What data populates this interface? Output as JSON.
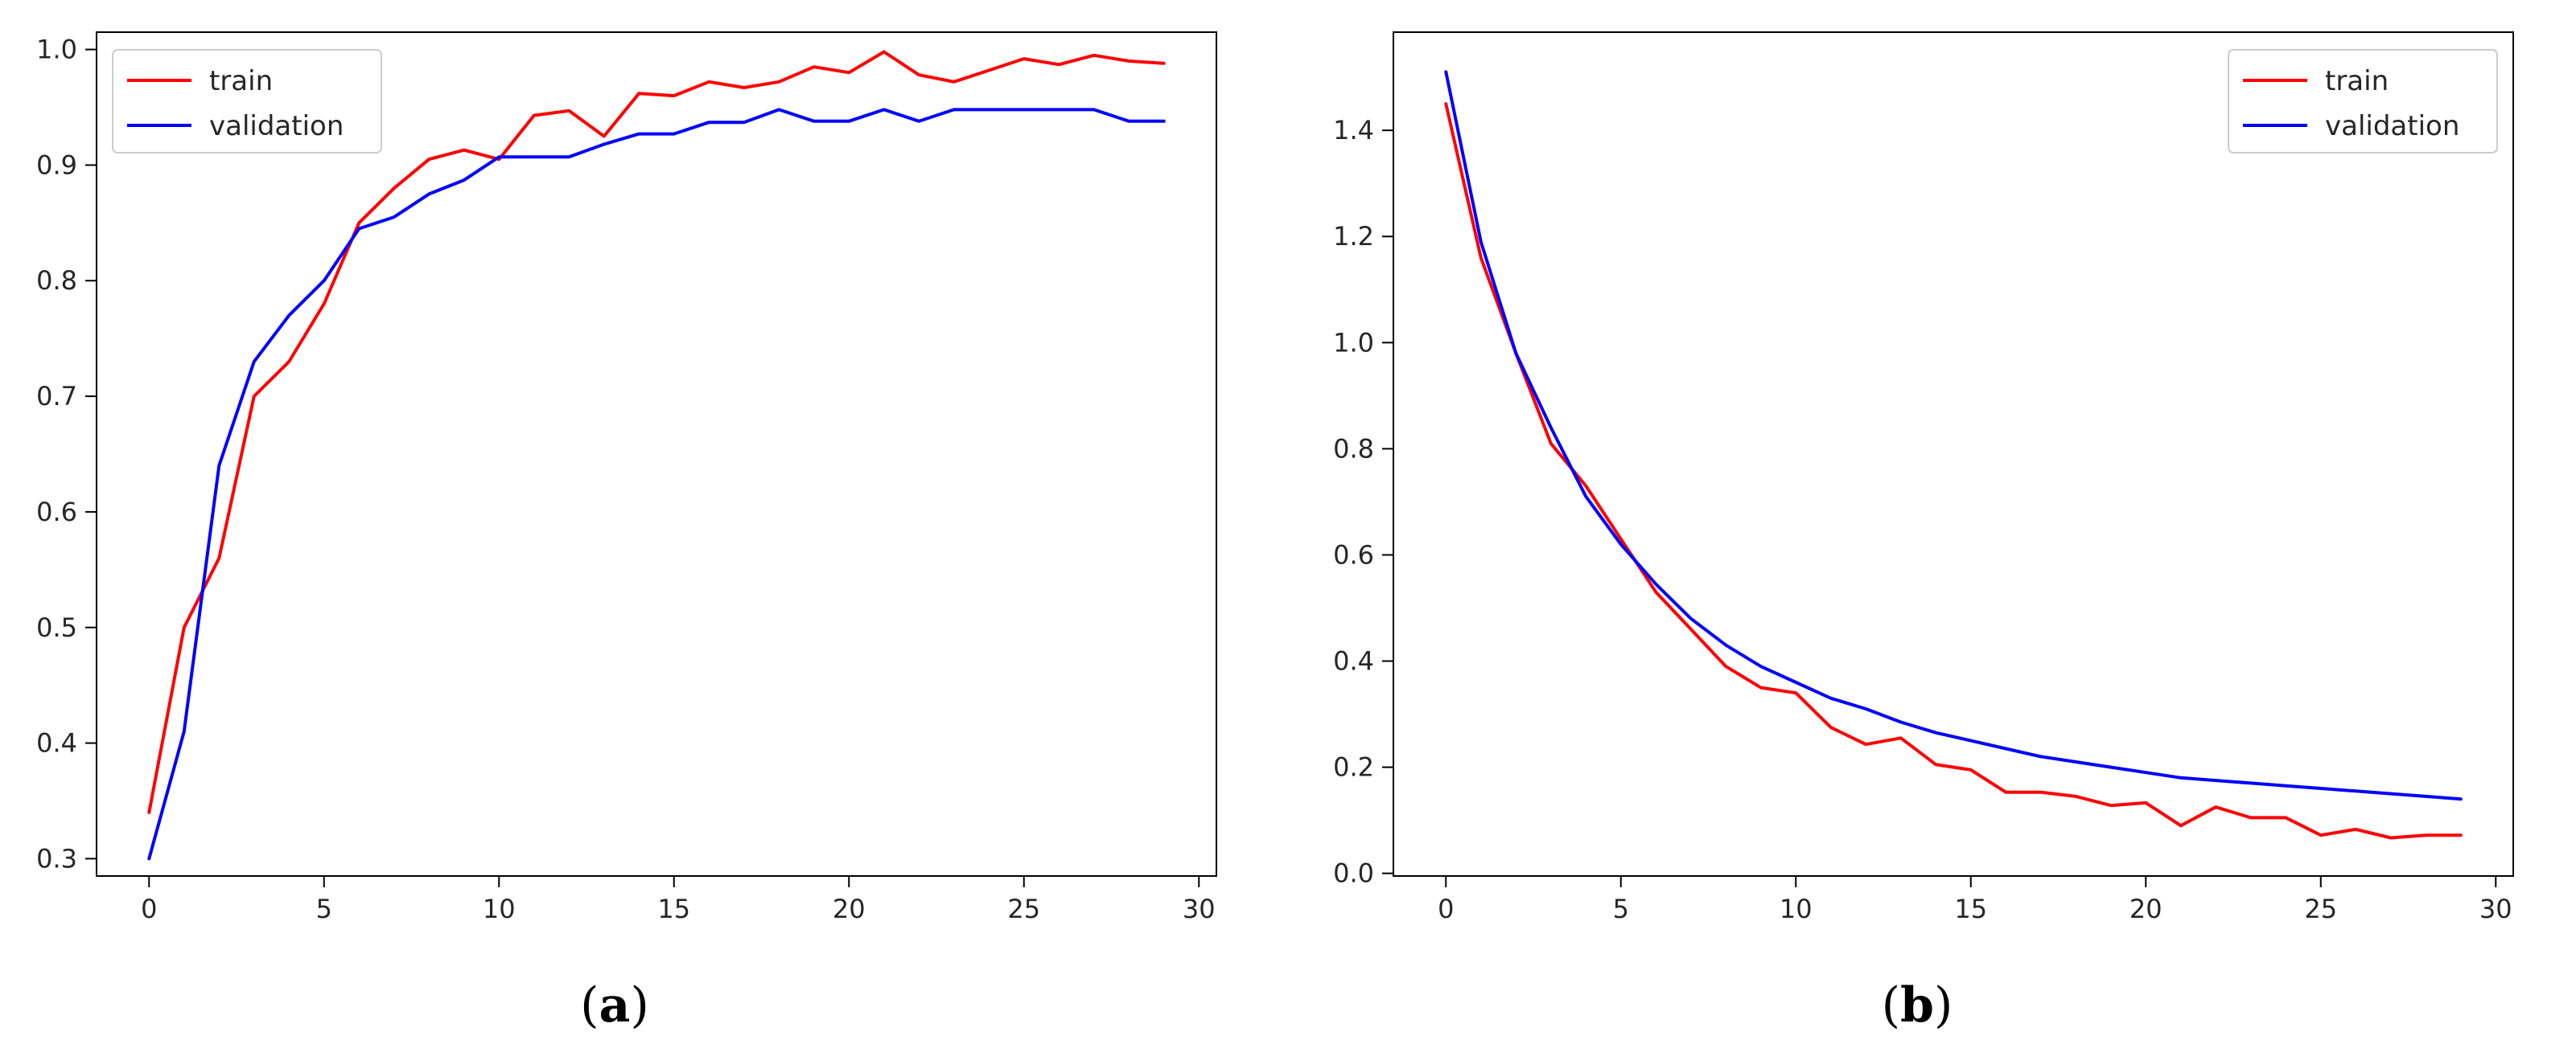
{
  "chart_data": [
    {
      "type": "line",
      "panel_label": "a",
      "x": [
        0,
        1,
        2,
        3,
        4,
        5,
        6,
        7,
        8,
        9,
        10,
        11,
        12,
        13,
        14,
        15,
        16,
        17,
        18,
        19,
        20,
        21,
        22,
        23,
        24,
        25,
        26,
        27,
        28,
        29
      ],
      "series": [
        {
          "name": "train",
          "color": "#ff0000",
          "values": [
            0.34,
            0.5,
            0.56,
            0.7,
            0.73,
            0.78,
            0.85,
            0.88,
            0.905,
            0.913,
            0.905,
            0.943,
            0.947,
            0.925,
            0.962,
            0.96,
            0.972,
            0.967,
            0.972,
            0.985,
            0.98,
            0.998,
            0.978,
            0.972,
            0.982,
            0.992,
            0.987,
            0.995,
            0.99,
            0.988
          ]
        },
        {
          "name": "validation",
          "color": "#0000ff",
          "values": [
            0.3,
            0.41,
            0.64,
            0.73,
            0.77,
            0.8,
            0.845,
            0.855,
            0.875,
            0.887,
            0.907,
            0.907,
            0.907,
            0.918,
            0.927,
            0.927,
            0.937,
            0.937,
            0.948,
            0.938,
            0.938,
            0.948,
            0.938,
            0.948,
            0.948,
            0.948,
            0.948,
            0.948,
            0.938,
            0.938
          ]
        }
      ],
      "xlim": [
        -1.5,
        30.5
      ],
      "ylim": [
        0.285,
        1.015
      ],
      "xticks": [
        0,
        5,
        10,
        15,
        20,
        25,
        30
      ],
      "yticks": [
        0.3,
        0.4,
        0.5,
        0.6,
        0.7,
        0.8,
        0.9,
        1.0
      ],
      "xtick_labels": [
        "0",
        "5",
        "10",
        "15",
        "20",
        "25",
        "30"
      ],
      "ytick_labels": [
        "0.3",
        "0.4",
        "0.5",
        "0.6",
        "0.7",
        "0.8",
        "0.9",
        "1.0"
      ],
      "legend_position": "top-left",
      "grid": false
    },
    {
      "type": "line",
      "panel_label": "b",
      "x": [
        0,
        1,
        2,
        3,
        4,
        5,
        6,
        7,
        8,
        9,
        10,
        11,
        12,
        13,
        14,
        15,
        16,
        17,
        18,
        19,
        20,
        21,
        22,
        23,
        24,
        25,
        26,
        27,
        28,
        29
      ],
      "series": [
        {
          "name": "train",
          "color": "#ff0000",
          "values": [
            1.45,
            1.16,
            0.98,
            0.81,
            0.73,
            0.63,
            0.53,
            0.46,
            0.39,
            0.35,
            0.34,
            0.275,
            0.243,
            0.255,
            0.205,
            0.195,
            0.153,
            0.153,
            0.145,
            0.128,
            0.133,
            0.09,
            0.125,
            0.105,
            0.105,
            0.072,
            0.083,
            0.067,
            0.072,
            0.072
          ]
        },
        {
          "name": "validation",
          "color": "#0000ff",
          "values": [
            1.51,
            1.19,
            0.98,
            0.84,
            0.71,
            0.62,
            0.545,
            0.48,
            0.43,
            0.39,
            0.36,
            0.33,
            0.31,
            0.285,
            0.265,
            0.25,
            0.235,
            0.22,
            0.21,
            0.2,
            0.19,
            0.18,
            0.175,
            0.17,
            0.165,
            0.16,
            0.155,
            0.15,
            0.145,
            0.14
          ]
        }
      ],
      "xlim": [
        -1.5,
        30.5
      ],
      "ylim": [
        -0.005,
        1.585
      ],
      "xticks": [
        0,
        5,
        10,
        15,
        20,
        25,
        30
      ],
      "yticks": [
        0.0,
        0.2,
        0.4,
        0.6,
        0.8,
        1.0,
        1.2,
        1.4
      ],
      "xtick_labels": [
        "0",
        "5",
        "10",
        "15",
        "20",
        "25",
        "30"
      ],
      "ytick_labels": [
        "0.0",
        "0.2",
        "0.4",
        "0.6",
        "0.8",
        "1.0",
        "1.2",
        "1.4"
      ],
      "legend_position": "top-right",
      "grid": false
    }
  ],
  "captions": [
    {
      "open": "(",
      "letter": "a",
      "close": ")"
    },
    {
      "open": "(",
      "letter": "b",
      "close": ")"
    }
  ]
}
